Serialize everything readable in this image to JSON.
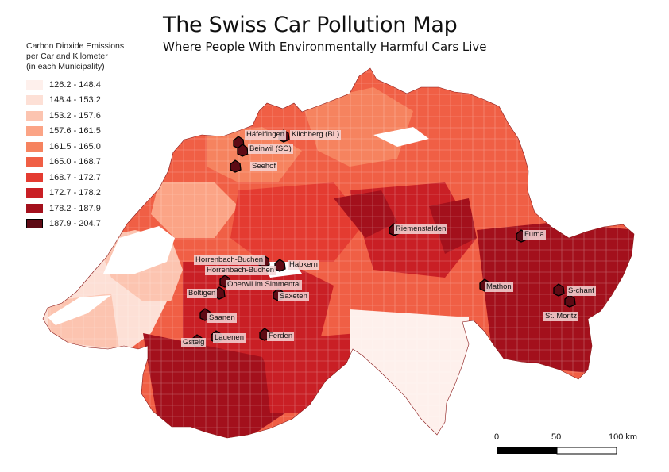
{
  "title": "The Swiss Car Pollution Map",
  "subtitle": "Where People With Environmentally Harmful Cars Live",
  "legend": {
    "title_lines": [
      "Carbon Dioxide Emissions",
      "per Car and Kilometer",
      "(in each Municipality)"
    ],
    "classes": [
      {
        "label": "126.2 - 148.4",
        "color": "#fef0ec"
      },
      {
        "label": "148.4 - 153.2",
        "color": "#fde0d6"
      },
      {
        "label": "153.2 - 157.6",
        "color": "#fcc4b0"
      },
      {
        "label": "157.6 - 161.5",
        "color": "#fba486"
      },
      {
        "label": "161.5 - 165.0",
        "color": "#f6835f"
      },
      {
        "label": "165.0 - 168.7",
        "color": "#f05f45"
      },
      {
        "label": "168.7 - 172.7",
        "color": "#e43b31"
      },
      {
        "label": "172.7 - 178.2",
        "color": "#c91f25"
      },
      {
        "label": "178.2 - 187.9",
        "color": "#a3101c"
      },
      {
        "label": "187.9 - 204.7",
        "color": "#5e0a14"
      }
    ]
  },
  "places": [
    {
      "name": "Häfelfingen",
      "emission_class": 9
    },
    {
      "name": "Kilchberg (BL)",
      "emission_class": 9
    },
    {
      "name": "Beinwil (SO)",
      "emission_class": 9
    },
    {
      "name": "Seehof",
      "emission_class": 9
    },
    {
      "name": "Riemenstalden",
      "emission_class": 9
    },
    {
      "name": "Furna",
      "emission_class": 9
    },
    {
      "name": "Horrenbach-Buchen",
      "emission_class": 9
    },
    {
      "name": "Habkern",
      "emission_class": 9
    },
    {
      "name": "Oberwil im Simmental",
      "emission_class": 9
    },
    {
      "name": "Mathon",
      "emission_class": 9
    },
    {
      "name": "S-chanf",
      "emission_class": 9
    },
    {
      "name": "Boltigen",
      "emission_class": 9
    },
    {
      "name": "Saxeten",
      "emission_class": 9
    },
    {
      "name": "Saanen",
      "emission_class": 9
    },
    {
      "name": "St. Moritz",
      "emission_class": 9
    },
    {
      "name": "Gsteig",
      "emission_class": 9
    },
    {
      "name": "Lauenen",
      "emission_class": 9
    },
    {
      "name": "Ferden",
      "emission_class": 9
    }
  ],
  "scale_bar": {
    "labels": [
      "0",
      "50",
      "100 km"
    ]
  }
}
